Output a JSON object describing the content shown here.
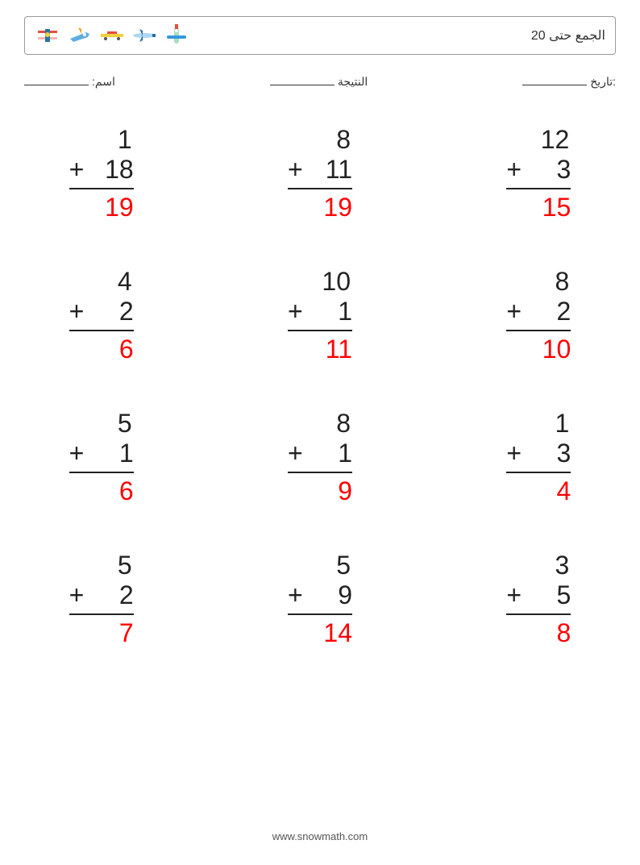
{
  "header": {
    "title": "الجمع حتى 20",
    "icon_colors": {
      "plane1_body": "#f5b7b1",
      "plane1_accent": "#2874a6",
      "plane2_body": "#5dade2",
      "plane2_accent": "#f39c12",
      "plane3_body": "#f4d03f",
      "plane3_accent": "#e74c3c",
      "plane4_body": "#aed6f1",
      "plane4_accent": "#2471a3",
      "plane5_body": "#a9dfbf",
      "plane5_accent": "#3498db"
    }
  },
  "info": {
    "name_label": "اسم:",
    "score_label": "النتيجة",
    "date_label": ":تاريخ"
  },
  "worksheet": {
    "type": "math-addition-vertical",
    "columns": 3,
    "rows": 4,
    "font_size_pt": 32,
    "text_color": "#222222",
    "answer_color": "#ff0000",
    "background_color": "#ffffff",
    "problems": [
      {
        "a": "1",
        "b": "18",
        "answer": "19"
      },
      {
        "a": "8",
        "b": "11",
        "answer": "19"
      },
      {
        "a": "12",
        "b": "3",
        "answer": "15",
        "spaced": true
      },
      {
        "a": "4",
        "b": "2",
        "answer": "6"
      },
      {
        "a": "10",
        "b": "1",
        "answer": "11",
        "spaced": true
      },
      {
        "a": "8",
        "b": "2",
        "answer": "10"
      },
      {
        "a": "5",
        "b": "1",
        "answer": "6"
      },
      {
        "a": "8",
        "b": "1",
        "answer": "9"
      },
      {
        "a": "1",
        "b": "3",
        "answer": "4"
      },
      {
        "a": "5",
        "b": "2",
        "answer": "7"
      },
      {
        "a": "5",
        "b": "9",
        "answer": "14"
      },
      {
        "a": "3",
        "b": "5",
        "answer": "8"
      }
    ]
  },
  "footer": {
    "url": "www.snowmath.com"
  }
}
